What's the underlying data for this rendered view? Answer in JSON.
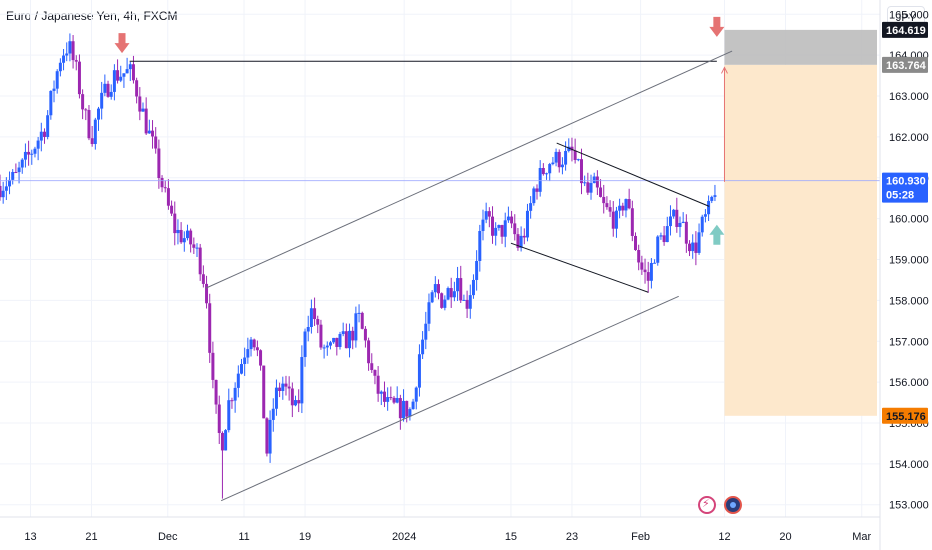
{
  "header": {
    "title": "Euro / Japanese Yen, 4h, FXCM",
    "currency": "JPY"
  },
  "colors": {
    "up": "#2962ff",
    "down": "#9c27b0",
    "accent": "#2962ff",
    "tp_zone": "#bdbdbd",
    "sl_zone": "#fde8cc",
    "stop_badge": "#f57c00",
    "arrow_down": "#e57373",
    "arrow_up": "#80cbc4"
  },
  "icons": {
    "lightning": "lightning-icon",
    "target": "target-icon"
  },
  "chart_data": {
    "type": "candlestick",
    "title": "Euro / Japanese Yen, 4h, FXCM",
    "ylim": [
      152.7,
      165.35
    ],
    "xlim": [
      "2023-11-09",
      "2024-03-03"
    ],
    "y_ticks": [
      "165.000",
      "164.000",
      "163.000",
      "162.000",
      "161.000",
      "160.000",
      "159.000",
      "158.000",
      "157.000",
      "156.000",
      "155.000",
      "154.000",
      "153.000"
    ],
    "x_ticks": [
      {
        "date": "2023-11-13",
        "label": "13"
      },
      {
        "date": "2023-11-21",
        "label": "21"
      },
      {
        "date": "2023-12-01",
        "label": "Dec"
      },
      {
        "date": "2023-12-11",
        "label": "11"
      },
      {
        "date": "2023-12-19",
        "label": "19"
      },
      {
        "date": "2024-01-01",
        "label": "2024"
      },
      {
        "date": "2024-01-15",
        "label": "15"
      },
      {
        "date": "2024-01-23",
        "label": "23"
      },
      {
        "date": "2024-02-01",
        "label": "Feb"
      },
      {
        "date": "2024-02-12",
        "label": "12"
      },
      {
        "date": "2024-02-20",
        "label": "20"
      },
      {
        "date": "2024-03-01",
        "label": "Mar"
      }
    ],
    "price_path": [
      [
        "2023-11-09",
        160.8
      ],
      [
        "2023-11-11",
        161.0
      ],
      [
        "2023-11-13",
        161.6
      ],
      [
        "2023-11-15",
        162.3
      ],
      [
        "2023-11-16",
        163.2
      ],
      [
        "2023-11-17",
        164.0
      ],
      [
        "2023-11-18",
        164.25
      ],
      [
        "2023-11-19",
        163.6
      ],
      [
        "2023-11-20",
        162.6
      ],
      [
        "2023-11-21",
        162.0
      ],
      [
        "2023-11-22",
        162.7
      ],
      [
        "2023-11-23",
        163.2
      ],
      [
        "2023-11-24",
        163.5
      ],
      [
        "2023-11-26",
        163.6
      ],
      [
        "2023-11-27",
        163.1
      ],
      [
        "2023-11-28",
        162.4
      ],
      [
        "2023-11-29",
        161.8
      ],
      [
        "2023-11-30",
        161.0
      ],
      [
        "2023-12-01",
        160.3
      ],
      [
        "2023-12-02",
        159.7
      ],
      [
        "2023-12-04",
        159.4
      ],
      [
        "2023-12-05",
        159.1
      ],
      [
        "2023-12-06",
        158.3
      ],
      [
        "2023-12-07",
        155.6
      ],
      [
        "2023-12-08",
        154.4
      ],
      [
        "2023-12-09",
        155.5
      ],
      [
        "2023-12-11",
        156.7
      ],
      [
        "2023-12-12",
        157.3
      ],
      [
        "2023-12-13",
        156.5
      ],
      [
        "2023-12-14",
        154.3
      ],
      [
        "2023-12-15",
        155.6
      ],
      [
        "2023-12-16",
        156.0
      ],
      [
        "2023-12-18",
        155.2
      ],
      [
        "2023-12-19",
        157.4
      ],
      [
        "2023-12-20",
        157.8
      ],
      [
        "2023-12-21",
        156.9
      ],
      [
        "2023-12-22",
        156.7
      ],
      [
        "2023-12-23",
        156.9
      ],
      [
        "2023-12-25",
        157.1
      ],
      [
        "2023-12-26",
        157.6
      ],
      [
        "2023-12-27",
        156.9
      ],
      [
        "2023-12-28",
        156.0
      ],
      [
        "2023-12-29",
        155.6
      ],
      [
        "2023-12-30",
        155.4
      ],
      [
        "2024-01-02",
        155.3
      ],
      [
        "2024-01-03",
        156.7
      ],
      [
        "2024-01-04",
        157.5
      ],
      [
        "2024-01-05",
        158.3
      ],
      [
        "2024-01-06",
        158.0
      ],
      [
        "2024-01-08",
        158.6
      ],
      [
        "2024-01-09",
        157.8
      ],
      [
        "2024-01-10",
        158.5
      ],
      [
        "2024-01-11",
        159.7
      ],
      [
        "2024-01-12",
        160.0
      ],
      [
        "2024-01-13",
        159.6
      ],
      [
        "2024-01-15",
        159.9
      ],
      [
        "2024-01-16",
        159.3
      ],
      [
        "2024-01-17",
        159.8
      ],
      [
        "2024-01-18",
        160.7
      ],
      [
        "2024-01-19",
        161.1
      ],
      [
        "2024-01-20",
        161.4
      ],
      [
        "2024-01-22",
        161.5
      ],
      [
        "2024-01-23",
        161.6
      ],
      [
        "2024-01-24",
        161.1
      ],
      [
        "2024-01-25",
        160.6
      ],
      [
        "2024-01-26",
        160.8
      ],
      [
        "2024-01-27",
        160.3
      ],
      [
        "2024-01-29",
        159.9
      ],
      [
        "2024-01-30",
        160.6
      ],
      [
        "2024-01-31",
        159.6
      ],
      [
        "2024-02-01",
        158.8
      ],
      [
        "2024-02-02",
        158.5
      ],
      [
        "2024-02-03",
        159.3
      ],
      [
        "2024-02-05",
        159.9
      ],
      [
        "2024-02-06",
        160.1
      ],
      [
        "2024-02-07",
        159.6
      ],
      [
        "2024-02-08",
        159.2
      ],
      [
        "2024-02-09",
        159.8
      ],
      [
        "2024-02-10",
        160.2
      ],
      [
        "2024-02-11",
        160.93
      ]
    ],
    "series_extremes": {
      "high": 164.25,
      "low": 153.15,
      "low_date": "2023-12-08"
    },
    "last_price": {
      "value": "160.930",
      "countdown": "05:28"
    },
    "price_badges": [
      {
        "label": "164.619",
        "value": 164.619,
        "type": "target"
      },
      {
        "label": "163.764",
        "value": 163.764,
        "type": "entry"
      },
      {
        "label": "155.176",
        "value": 155.176,
        "type": "stop"
      }
    ],
    "trade_position": {
      "x_range": [
        "2024-02-12",
        "2024-03-03"
      ],
      "tp_zone": [
        163.764,
        164.619
      ],
      "sl_zone": [
        155.176,
        163.764
      ]
    },
    "horizontal_line": {
      "value": 163.85,
      "x_range": [
        "2023-11-26",
        "2024-02-11"
      ]
    },
    "trendlines": [
      {
        "name": "channel-upper",
        "from": [
          "2023-12-06",
          158.3
        ],
        "to": [
          "2024-02-13",
          164.1
        ]
      },
      {
        "name": "channel-lower",
        "from": [
          "2023-12-08",
          153.1
        ],
        "to": [
          "2024-02-06",
          158.1
        ]
      },
      {
        "name": "flag-upper",
        "from": [
          "2024-01-21",
          161.85
        ],
        "to": [
          "2024-02-10",
          160.3
        ]
      },
      {
        "name": "flag-lower",
        "from": [
          "2024-01-15",
          159.4
        ],
        "to": [
          "2024-02-02",
          158.2
        ]
      }
    ],
    "markers": [
      {
        "type": "down-arrow",
        "date": "2023-11-25",
        "value": 164.0
      },
      {
        "type": "down-arrow",
        "date": "2024-02-11",
        "value": 164.4
      },
      {
        "type": "up-arrow",
        "date": "2024-02-11",
        "value": 159.9
      }
    ],
    "connector": {
      "date": "2024-02-12",
      "from": 160.9,
      "to": 163.7
    },
    "grid": true
  }
}
